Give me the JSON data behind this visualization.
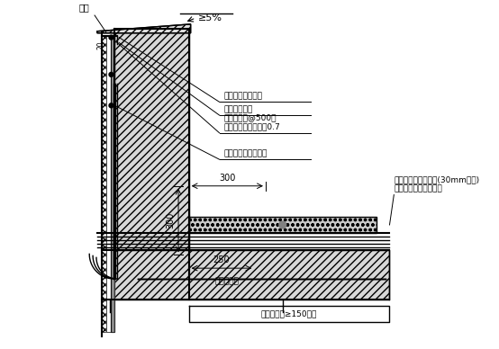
{
  "bg_color": "#ffffff",
  "line_color": "#000000",
  "labels": {
    "top_left": "压顶",
    "slope": "≥5%",
    "dim_20": "20",
    "label1": "非固构密封胶嵌严",
    "label2": "镀锌金属盖板",
    "label3": "水泥钉或钉@500，\n防锈金属压杆，厚度0.7",
    "label4": "非固构柔性防水材严",
    "dim_300h": "300",
    "dim_300v": "300",
    "label5": "密闭嵌密封胶嵌收头(30mm宽缝)\n聚乙烯泡沫填缝料填充",
    "dim_250": "250",
    "label6": "附加防水层",
    "label7": "细石混凝土≥150厚层"
  }
}
